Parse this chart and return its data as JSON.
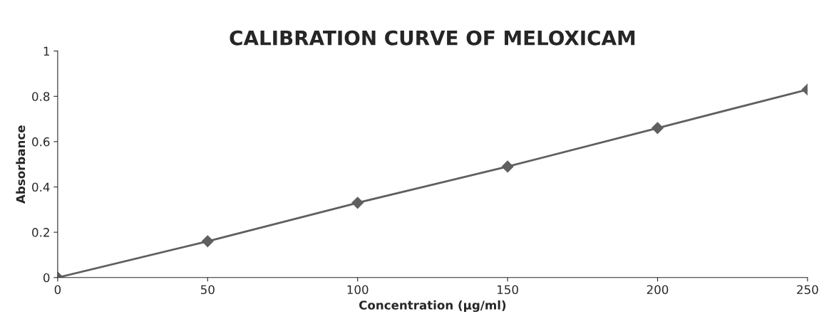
{
  "chart_data": {
    "type": "line",
    "title": "CALIBRATION CURVE OF MELOXICAM",
    "xlabel": "Concentration (μg/ml)",
    "ylabel": "Absorbance",
    "x": [
      0,
      50,
      100,
      150,
      200,
      250
    ],
    "series": [
      {
        "color": "#5f5f5f",
        "values": [
          0,
          0.16,
          0.33,
          0.49,
          0.66,
          0.83
        ]
      }
    ],
    "xlim": [
      0,
      250
    ],
    "xticks": [
      0,
      50,
      100,
      150,
      200,
      250
    ],
    "ylim": [
      0,
      1
    ],
    "yticks": [
      0,
      0.2,
      0.4,
      0.6,
      0.8,
      1
    ],
    "grid": false,
    "marker": "diamond",
    "line_style": "solid"
  }
}
